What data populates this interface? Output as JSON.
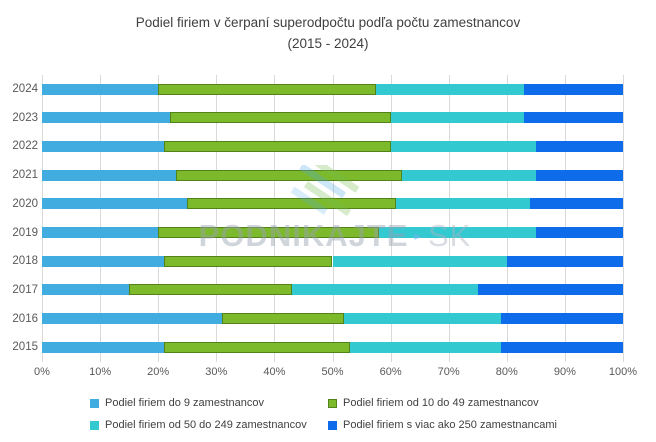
{
  "title": {
    "line1": "Podiel firiem v čerpaní superodpočtu podľa počtu zamestnancov",
    "line2": "(2015 - 2024)"
  },
  "watermark": {
    "brand": "PODNIKAJTE",
    "arrow": "▸",
    "suffix": "SK"
  },
  "colors": {
    "series_micro": "#41ACDF",
    "series_small": "#7CBA2C",
    "series_small_border": "#54821A",
    "series_medium": "#33C9D1",
    "series_large": "#0E6BE9",
    "gridline": "#d9d9d9",
    "title_text": "#404040",
    "axis_text": "#595959"
  },
  "chart_data": {
    "type": "bar",
    "stacked": true,
    "orientation": "horizontal",
    "title": "Podiel firiem v čerpaní superodpočtu podľa počtu zamestnancov (2015 - 2024)",
    "categories": [
      "2024",
      "2023",
      "2022",
      "2021",
      "2020",
      "2019",
      "2018",
      "2017",
      "2016",
      "2015"
    ],
    "series": [
      {
        "name": "Podiel firiem do 9 zamestnancov",
        "color": "#41ACDF",
        "values": [
          20,
          22,
          21,
          23,
          25,
          20,
          21,
          15,
          31,
          21
        ]
      },
      {
        "name": "Podiel firiem od 10 do 49 zamestnancov",
        "color": "#7CBA2C",
        "border_color": "#54821A",
        "values": [
          37.5,
          38,
          39,
          39,
          36,
          38,
          29,
          28,
          21,
          32
        ]
      },
      {
        "name": "Podiel firiem od 50 do 249 zamestnancov",
        "color": "#33C9D1",
        "values": [
          25.5,
          23,
          25,
          23,
          23,
          27,
          30,
          32,
          27,
          26
        ]
      },
      {
        "name": "Podiel firiem s viac ako 250 zamestnancami",
        "color": "#0E6BE9",
        "values": [
          17,
          17,
          15,
          15,
          16,
          15,
          20,
          25,
          21,
          21
        ]
      }
    ],
    "xticks": [
      "0%",
      "10%",
      "20%",
      "30%",
      "40%",
      "50%",
      "60%",
      "70%",
      "80%",
      "90%",
      "100%"
    ],
    "xlim": [
      0,
      100
    ],
    "grid": true,
    "legend_position": "bottom"
  }
}
